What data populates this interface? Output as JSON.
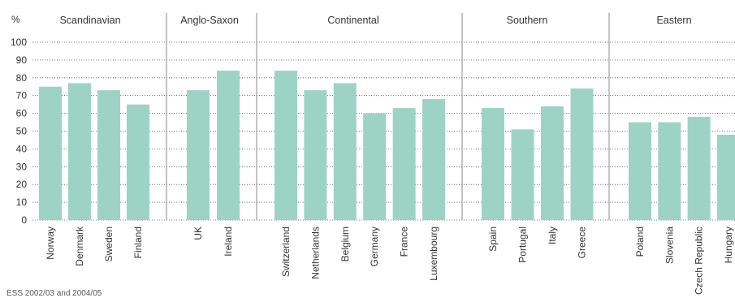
{
  "chart_data": {
    "type": "bar",
    "ylabel": "%",
    "ylim": [
      0,
      100
    ],
    "yticks": [
      0,
      10,
      20,
      30,
      40,
      50,
      60,
      70,
      80,
      90,
      100
    ],
    "grid": "horizontal-dotted",
    "bar_color": "#9dd3c5",
    "groups": [
      {
        "name": "Scandinavian",
        "categories": [
          "Norway",
          "Denmark",
          "Sweden",
          "Finland"
        ],
        "values": [
          75,
          77,
          73,
          65
        ]
      },
      {
        "name": "Anglo-Saxon",
        "categories": [
          "UK",
          "Ireland"
        ],
        "values": [
          73,
          84
        ]
      },
      {
        "name": "Continental",
        "categories": [
          "Switzerland",
          "Netherlands",
          "Belgium",
          "Germany",
          "France",
          "Luxembourg"
        ],
        "values": [
          84,
          73,
          77,
          60,
          63,
          68
        ]
      },
      {
        "name": "Southern",
        "categories": [
          "Spain",
          "Portugal",
          "Italy",
          "Greece"
        ],
        "values": [
          63,
          51,
          64,
          74
        ]
      },
      {
        "name": "Eastern",
        "categories": [
          "Poland",
          "Slovenia",
          "Czech Republic",
          "Hungary"
        ],
        "values": [
          55,
          55,
          58,
          48
        ]
      }
    ]
  },
  "source_note": "ESS 2002/03 and 2004/05"
}
